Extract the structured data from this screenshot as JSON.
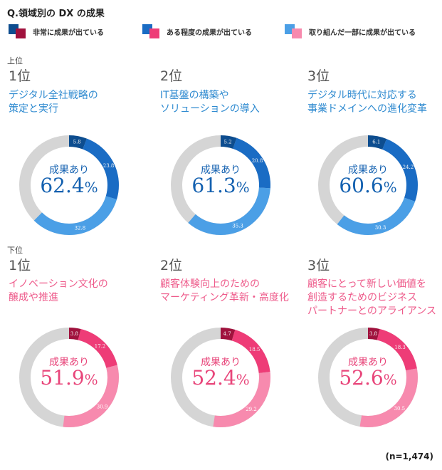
{
  "title": "Q.領域別の DX の成果",
  "legend": [
    {
      "label": "非常に成果が出ている",
      "colors": [
        "#0d4d8f",
        "#a0123d"
      ]
    },
    {
      "label": "ある程度の成果が出ている",
      "colors": [
        "#1a6cc4",
        "#ee3c77"
      ]
    },
    {
      "label": "取り組んだ一部に成果が出ている",
      "colors": [
        "#4b9fe6",
        "#f78aae"
      ]
    }
  ],
  "sections": {
    "top_label": "上位",
    "bottom_label": "下位"
  },
  "center_label": "成果あり",
  "percent_sign": "%",
  "n_label": "(n=1,474)",
  "colors": {
    "remainder": "#d5d5d5",
    "top": [
      "#0d4d8f",
      "#1a6cc4",
      "#4b9fe6"
    ],
    "bottom": [
      "#a0123d",
      "#ee3c77",
      "#f78aae"
    ]
  },
  "chart_data": [
    {
      "type": "pie",
      "group": "top",
      "rank": "1位",
      "title": "デジタル全社戦略の\n策定と実行",
      "total": "62.4",
      "series": [
        "非常に成果が出ている",
        "ある程度の成果が出ている",
        "取り組んだ一部に成果が出ている"
      ],
      "values": [
        5.8,
        23.8,
        32.8
      ]
    },
    {
      "type": "pie",
      "group": "top",
      "rank": "2位",
      "title": "IT基盤の構築や\nソリューションの導入",
      "total": "61.3",
      "series": [
        "非常に成果が出ている",
        "ある程度の成果が出ている",
        "取り組んだ一部に成果が出ている"
      ],
      "values": [
        5.2,
        20.8,
        35.3
      ]
    },
    {
      "type": "pie",
      "group": "top",
      "rank": "3位",
      "title": "デジタル時代に対応する\n事業ドメインへの進化変革",
      "total": "60.6",
      "series": [
        "非常に成果が出ている",
        "ある程度の成果が出ている",
        "取り組んだ一部に成果が出ている"
      ],
      "values": [
        6.1,
        24.2,
        30.3
      ]
    },
    {
      "type": "pie",
      "group": "bottom",
      "rank": "1位",
      "title": "イノベーション文化の\n醸成や推進",
      "total": "51.9",
      "series": [
        "非常に成果が出ている",
        "ある程度の成果が出ている",
        "取り組んだ一部に成果が出ている"
      ],
      "values": [
        3.8,
        17.2,
        30.9
      ]
    },
    {
      "type": "pie",
      "group": "bottom",
      "rank": "2位",
      "title": "顧客体験向上のための\nマーケティング革新・高度化",
      "total": "52.4",
      "series": [
        "非常に成果が出ている",
        "ある程度の成果が出ている",
        "取り組んだ一部に成果が出ている"
      ],
      "values": [
        4.7,
        18.5,
        29.2
      ]
    },
    {
      "type": "pie",
      "group": "bottom",
      "rank": "3位",
      "title": "顧客にとって新しい価値を\n創造するためのビジネス\nパートナーとのアライアンス",
      "total": "52.6",
      "series": [
        "非常に成果が出ている",
        "ある程度の成果が出ている",
        "取り組んだ一部に成果が出ている"
      ],
      "values": [
        3.8,
        18.3,
        30.5
      ]
    }
  ]
}
